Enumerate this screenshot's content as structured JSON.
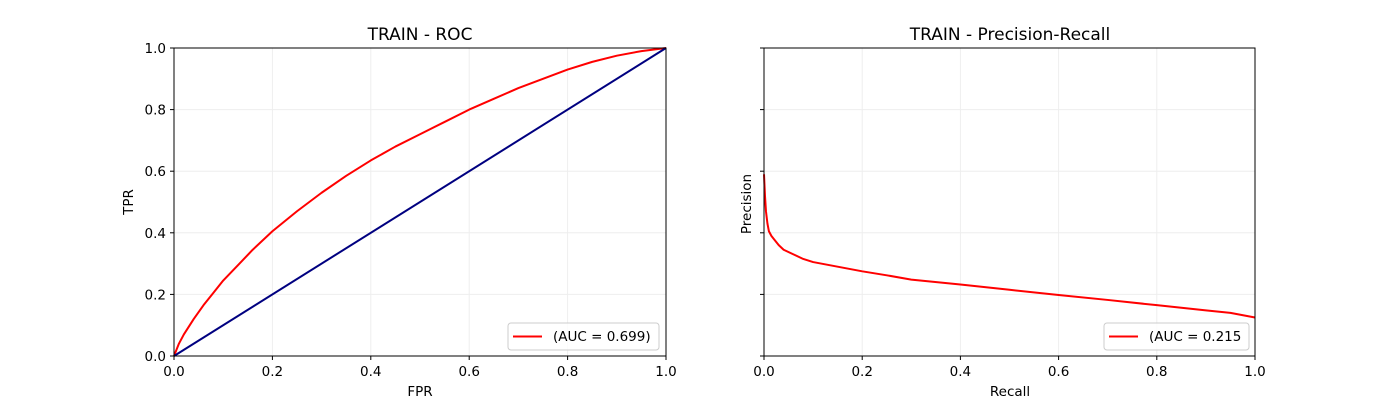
{
  "chart_data": [
    {
      "type": "line",
      "title": "TRAIN - ROC",
      "xlabel": "FPR",
      "ylabel": "TPR",
      "xlim": [
        0.0,
        1.0
      ],
      "ylim": [
        0.0,
        1.0
      ],
      "xticks": [
        "0.0",
        "0.2",
        "0.4",
        "0.6",
        "0.8",
        "1.0"
      ],
      "yticks": [
        "0.0",
        "0.2",
        "0.4",
        "0.6",
        "0.8",
        "1.0"
      ],
      "grid": true,
      "legend_position": "lower-right",
      "series": [
        {
          "name": "(AUC = 0.699)",
          "color": "#ff0000",
          "x": [
            0.0,
            0.01,
            0.02,
            0.04,
            0.06,
            0.08,
            0.1,
            0.13,
            0.16,
            0.2,
            0.25,
            0.3,
            0.35,
            0.4,
            0.45,
            0.5,
            0.55,
            0.6,
            0.65,
            0.7,
            0.75,
            0.8,
            0.85,
            0.9,
            0.95,
            1.0
          ],
          "y": [
            0.0,
            0.04,
            0.07,
            0.12,
            0.165,
            0.205,
            0.245,
            0.295,
            0.345,
            0.405,
            0.47,
            0.53,
            0.585,
            0.635,
            0.68,
            0.72,
            0.76,
            0.8,
            0.835,
            0.87,
            0.9,
            0.93,
            0.955,
            0.975,
            0.99,
            1.0
          ]
        },
        {
          "color": "#000080",
          "x": [
            0.0,
            1.0
          ],
          "y": [
            0.0,
            1.0
          ]
        }
      ]
    },
    {
      "type": "line",
      "title": "TRAIN - Precision-Recall",
      "xlabel": "Recall",
      "ylabel": "Precision",
      "xlim": [
        0.0,
        1.0
      ],
      "ylim": [
        0.0,
        1.0
      ],
      "xticks": [
        "0.0",
        "0.2",
        "0.4",
        "0.6",
        "0.8",
        "1.0"
      ],
      "yticks": [
        "",
        "",
        "",
        "",
        "",
        ""
      ],
      "grid": true,
      "legend_position": "lower-right",
      "series": [
        {
          "name": "(AUC = 0.215",
          "color": "#ff0000",
          "x": [
            0.0,
            0.002,
            0.004,
            0.007,
            0.01,
            0.015,
            0.02,
            0.03,
            0.04,
            0.06,
            0.08,
            0.1,
            0.15,
            0.2,
            0.25,
            0.3,
            0.4,
            0.5,
            0.6,
            0.7,
            0.8,
            0.9,
            0.95,
            1.0
          ],
          "y": [
            0.59,
            0.52,
            0.47,
            0.43,
            0.405,
            0.39,
            0.38,
            0.36,
            0.345,
            0.33,
            0.315,
            0.305,
            0.29,
            0.275,
            0.262,
            0.248,
            0.232,
            0.215,
            0.198,
            0.182,
            0.165,
            0.148,
            0.14,
            0.125
          ]
        }
      ]
    }
  ]
}
